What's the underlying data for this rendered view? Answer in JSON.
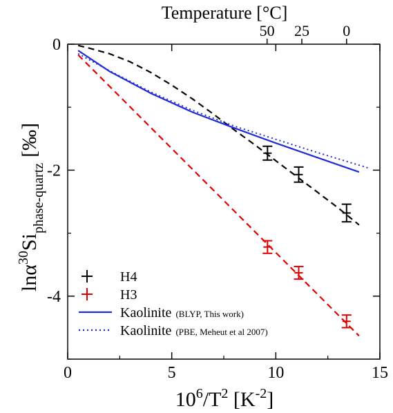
{
  "chart_data": {
    "type": "line",
    "xlabel": {
      "main": "10",
      "sup1": "6",
      "mid": "/T",
      "sup2": "2",
      "unit": " [K",
      "sup3": "-2",
      "end": "]"
    },
    "ylabel": {
      "pre": "lnα",
      "sup": "30",
      "main": "Si",
      "sub": "phase-quartz",
      "unit": "[‰]"
    },
    "top_axis_label": "Temperature [°C]",
    "xlim": [
      0,
      15
    ],
    "ylim": [
      -5,
      0
    ],
    "x_ticks": [
      0,
      5,
      10,
      15
    ],
    "y_ticks": [
      0,
      -2,
      -4
    ],
    "y_tick_labels": [
      "0",
      "-2",
      "-4"
    ],
    "top_ticks": [
      {
        "label": "50",
        "x": 9.58
      },
      {
        "label": "25",
        "x": 11.25
      },
      {
        "label": "0",
        "x": 13.4
      }
    ],
    "series": [
      {
        "name": "H4",
        "role": "model-dashed",
        "color": "#000000",
        "x": [
          0.5,
          1,
          2,
          3,
          4,
          5,
          6,
          7,
          8,
          9,
          10,
          11,
          12,
          13,
          14
        ],
        "y": [
          -0.02,
          -0.06,
          -0.15,
          -0.28,
          -0.45,
          -0.65,
          -0.87,
          -1.11,
          -1.36,
          -1.6,
          -1.85,
          -2.1,
          -2.35,
          -2.6,
          -2.87
        ]
      },
      {
        "name": "H3",
        "role": "model-dashed",
        "color": "#e00000",
        "x": [
          0.5,
          14
        ],
        "y": [
          -0.17,
          -4.63
        ]
      },
      {
        "name": "Kaolinite",
        "note": "(BLYP, This work)",
        "role": "line-solid",
        "color": "#1f2bd8",
        "x": [
          0.5,
          2,
          4,
          6,
          8,
          10,
          12,
          14
        ],
        "y": [
          -0.1,
          -0.43,
          -0.78,
          -1.08,
          -1.33,
          -1.57,
          -1.8,
          -2.03
        ]
      },
      {
        "name": "Kaolinite",
        "note": "(PBE, Meheut et al 2007)",
        "role": "line-dotted",
        "color": "#1f2bd8",
        "x": [
          0.5,
          2,
          4,
          6,
          8,
          10,
          12,
          14.5
        ],
        "y": [
          -0.15,
          -0.42,
          -0.76,
          -1.05,
          -1.3,
          -1.51,
          -1.72,
          -1.97
        ]
      }
    ],
    "points": [
      {
        "series": "H4",
        "color": "#000000",
        "x": 9.6,
        "y": -1.73,
        "yerr": 0.11,
        "xerr": 0.35
      },
      {
        "series": "H4",
        "color": "#000000",
        "x": 11.1,
        "y": -2.07,
        "yerr": 0.12,
        "xerr": 0.35
      },
      {
        "series": "H4",
        "color": "#000000",
        "x": 13.4,
        "y": -2.68,
        "yerr": 0.14,
        "xerr": 0.35
      },
      {
        "series": "H3",
        "color": "#e00000",
        "x": 9.6,
        "y": -3.22,
        "yerr": 0.1,
        "xerr": 0.35
      },
      {
        "series": "H3",
        "color": "#e00000",
        "x": 11.1,
        "y": -3.63,
        "yerr": 0.1,
        "xerr": 0.35
      },
      {
        "series": "H3",
        "color": "#e00000",
        "x": 13.4,
        "y": -4.4,
        "yerr": 0.1,
        "xerr": 0.35
      }
    ],
    "legend": {
      "placement": "bottom-left",
      "items": [
        {
          "label": "H4",
          "note": "",
          "color": "#000000",
          "style": "cross"
        },
        {
          "label": "H3",
          "note": "",
          "color": "#e00000",
          "style": "cross"
        },
        {
          "label": "Kaolinite",
          "note": "(BLYP, This work)",
          "color": "#1f2bd8",
          "style": "solid"
        },
        {
          "label": "Kaolinite",
          "note": "(PBE, Meheut et al 2007)",
          "color": "#1f2bd8",
          "style": "dotted"
        }
      ]
    }
  }
}
